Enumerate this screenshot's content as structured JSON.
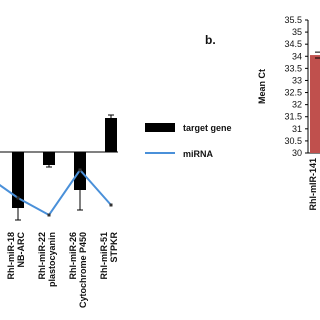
{
  "chart_data": [
    {
      "type": "bar",
      "categories": [
        null,
        [
          "Rhl-miR-18",
          "NB-ARC"
        ],
        [
          "Rhl-miR-22",
          "plastocyanin"
        ],
        [
          "Rhl-miR-26",
          "Cytochrome P450"
        ],
        [
          "Rhl-miR-51",
          "STPKR"
        ]
      ],
      "series": [
        {
          "name": "target gene",
          "color": "#000000",
          "values": [
            -1.4,
            -2.8,
            -0.65,
            -1.9,
            1.7
          ],
          "errors": [
            0.3,
            0.6,
            0.1,
            1.0,
            0.15
          ]
        },
        {
          "name": "miRNA",
          "type": "line",
          "color": "#4a90d9",
          "values": [
            -1.2,
            -2.3,
            -3.15,
            -0.9,
            -2.65
          ]
        }
      ]
    },
    {
      "type": "bar",
      "label": "b.",
      "y_label": "Mean Ct",
      "categories": [
        "Rhl-mIR-141"
      ],
      "series": [
        {
          "color": "#c0504d",
          "values": [
            34.05
          ],
          "errors": [
            0.12
          ]
        }
      ],
      "ylim": [
        30,
        35.5
      ],
      "yticks": [
        30,
        30.5,
        31,
        31.5,
        32,
        32.5,
        33,
        33.5,
        34,
        34.5,
        35,
        35.5
      ]
    }
  ]
}
